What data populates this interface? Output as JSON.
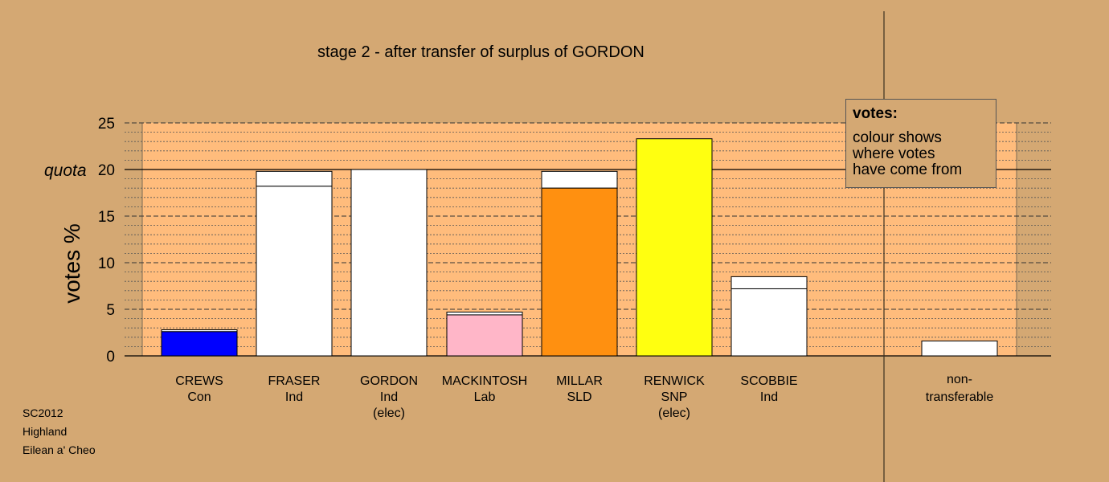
{
  "chart_data": {
    "type": "bar",
    "title": "stage 2 - after transfer of surplus of GORDON",
    "ylabel": "votes %",
    "ylim": [
      0,
      25
    ],
    "yticks": [
      0,
      5,
      10,
      15,
      20,
      25
    ],
    "quota": {
      "label": "quota",
      "value": 20
    },
    "candidates": [
      {
        "name": "CREWS",
        "party": "Con",
        "status": "",
        "color": "#0000ff",
        "base": 2.6,
        "total": 2.8
      },
      {
        "name": "FRASER",
        "party": "Ind",
        "status": "",
        "color": "#ffffff",
        "base": 18.2,
        "total": 19.8
      },
      {
        "name": "GORDON",
        "party": "Ind",
        "status": "(elec)",
        "color": "#ffffff",
        "base": 20.0,
        "total": 20.0
      },
      {
        "name": "MACKINTOSH",
        "party": "Lab",
        "status": "",
        "color": "#ffb6c8",
        "base": 4.4,
        "total": 4.7
      },
      {
        "name": "MILLAR",
        "party": "SLD",
        "status": "",
        "color": "#ff9010",
        "base": 18.0,
        "total": 19.8
      },
      {
        "name": "RENWICK",
        "party": "SNP",
        "status": "(elec)",
        "color": "#ffff10",
        "base": 23.3,
        "total": 23.3
      },
      {
        "name": "SCOBBIE",
        "party": "Ind",
        "status": "",
        "color": "#ffffff",
        "base": 7.2,
        "total": 8.5
      }
    ],
    "nontransferable": {
      "label_line1": "non-",
      "label_line2": "transferable",
      "value": 1.6,
      "color": "#ffffff"
    },
    "grid": true,
    "legend_placement": "top-right"
  },
  "legend": {
    "title": "votes:",
    "text": "colour shows\nwhere votes\nhave come from"
  },
  "footer": {
    "line1": "SC2012",
    "line2": "Highland",
    "line3": "Eilean a' Cheo"
  }
}
